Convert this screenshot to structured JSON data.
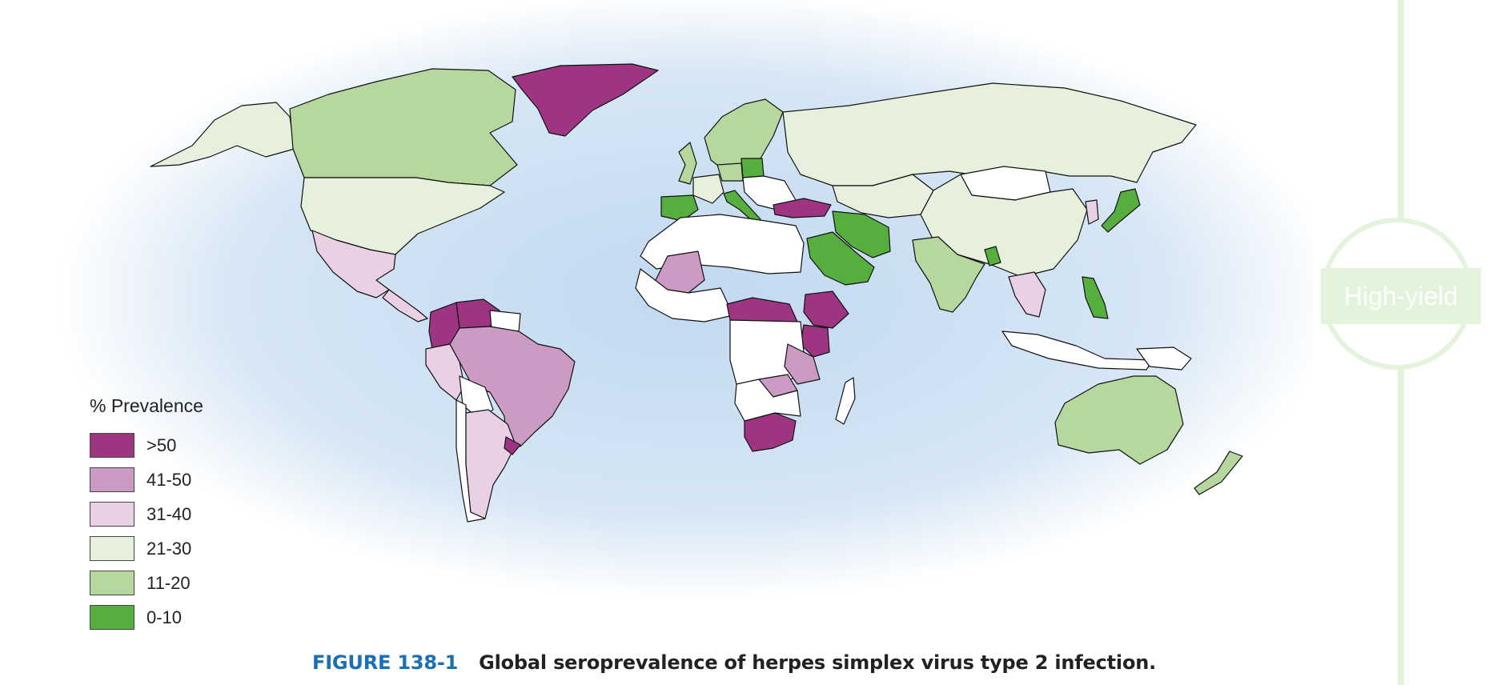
{
  "figure": {
    "number": "FIGURE 138-1",
    "title": "Global seroprevalence of herpes simplex virus type 2 infection."
  },
  "legend": {
    "title": "% Prevalence",
    "items": [
      {
        "label": ">50",
        "color": "#9e3583"
      },
      {
        "label": "41-50",
        "color": "#cc9bc3"
      },
      {
        "label": "31-40",
        "color": "#ead0e4"
      },
      {
        "label": "21-30",
        "color": "#e6f0dc"
      },
      {
        "label": "11-20",
        "color": "#b6d89e"
      },
      {
        "label": "0-10",
        "color": "#56ae3f"
      }
    ]
  },
  "side_badge": {
    "label": "High-yield"
  },
  "colors": {
    "ocean_glow": "#cfe2f3",
    "no_data": "#ffffff",
    "badge": "#e3f3dc"
  },
  "regions": [
    {
      "name": "Greenland",
      "category": ">50"
    },
    {
      "name": "Canada",
      "category": "11-20"
    },
    {
      "name": "Alaska",
      "category": "21-30"
    },
    {
      "name": "United States",
      "category": "21-30"
    },
    {
      "name": "Mexico",
      "category": "31-40"
    },
    {
      "name": "Central America",
      "category": "31-40"
    },
    {
      "name": "Colombia",
      "category": ">50"
    },
    {
      "name": "Venezuela",
      "category": ">50"
    },
    {
      "name": "Guianas",
      "category": "no-data"
    },
    {
      "name": "Brazil",
      "category": "41-50"
    },
    {
      "name": "Peru",
      "category": "31-40"
    },
    {
      "name": "Bolivia",
      "category": "no-data"
    },
    {
      "name": "Chile",
      "category": "no-data"
    },
    {
      "name": "Argentina",
      "category": "31-40"
    },
    {
      "name": "Uruguay",
      "category": ">50"
    },
    {
      "name": "Scandinavia",
      "category": "11-20"
    },
    {
      "name": "United Kingdom",
      "category": "11-20"
    },
    {
      "name": "Iberia",
      "category": "0-10"
    },
    {
      "name": "France",
      "category": "21-30"
    },
    {
      "name": "Germany",
      "category": "11-20"
    },
    {
      "name": "Poland",
      "category": "0-10"
    },
    {
      "name": "Italy",
      "category": "0-10"
    },
    {
      "name": "Eastern Europe",
      "category": "no-data"
    },
    {
      "name": "Turkey",
      "category": ">50"
    },
    {
      "name": "Russia",
      "category": "21-30"
    },
    {
      "name": "Central Asia",
      "category": "21-30"
    },
    {
      "name": "Mongolia",
      "category": "no-data"
    },
    {
      "name": "China",
      "category": "21-30"
    },
    {
      "name": "Korea",
      "category": "31-40"
    },
    {
      "name": "Japan",
      "category": "0-10"
    },
    {
      "name": "Iran",
      "category": "0-10"
    },
    {
      "name": "Saudi Arabia",
      "category": "0-10"
    },
    {
      "name": "India",
      "category": "11-20"
    },
    {
      "name": "Bangladesh",
      "category": "0-10"
    },
    {
      "name": "Southeast Asia",
      "category": "31-40"
    },
    {
      "name": "Philippines",
      "category": "0-10"
    },
    {
      "name": "Indonesia",
      "category": "no-data"
    },
    {
      "name": "Papua New Guinea",
      "category": "no-data"
    },
    {
      "name": "North Africa",
      "category": "no-data"
    },
    {
      "name": "Mali",
      "category": "41-50"
    },
    {
      "name": "West Africa",
      "category": "no-data"
    },
    {
      "name": "Central African Republic",
      "category": ">50"
    },
    {
      "name": "Ethiopia",
      "category": ">50"
    },
    {
      "name": "Kenya",
      "category": ">50"
    },
    {
      "name": "Tanzania",
      "category": "41-50"
    },
    {
      "name": "Zambia",
      "category": "41-50"
    },
    {
      "name": "Southern Africa",
      "category": ">50"
    },
    {
      "name": "Madagascar",
      "category": "no-data"
    },
    {
      "name": "Australia",
      "category": "11-20"
    },
    {
      "name": "New Zealand",
      "category": "11-20"
    }
  ]
}
